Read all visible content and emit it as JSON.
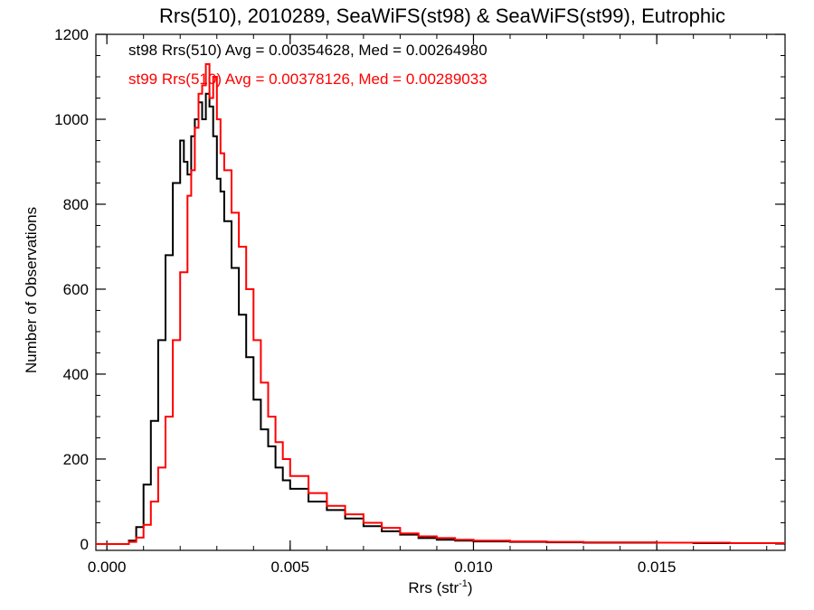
{
  "chart_data": {
    "type": "line",
    "title": "Rrs(510), 2010289, SeaWiFS(st98) & SeaWiFS(st99), Eutrophic",
    "xlabel": "Rrs (str",
    "xlabel_sup": "-1",
    "xlabel_end": ")",
    "ylabel": "Number of Observations",
    "xlim": [
      -0.0003,
      0.0185
    ],
    "ylim": [
      -15,
      1200
    ],
    "xticks": [
      {
        "value": 0.0,
        "label": "0.000"
      },
      {
        "value": 0.005,
        "label": "0.005"
      },
      {
        "value": 0.01,
        "label": "0.010"
      },
      {
        "value": 0.015,
        "label": "0.015"
      }
    ],
    "yticks": [
      {
        "value": 0,
        "label": "0"
      },
      {
        "value": 200,
        "label": "200"
      },
      {
        "value": 400,
        "label": "400"
      },
      {
        "value": 600,
        "label": "600"
      },
      {
        "value": 800,
        "label": "800"
      },
      {
        "value": 1000,
        "label": "1000"
      },
      {
        "value": 1200,
        "label": "1200"
      }
    ],
    "x_minor_step": 0.001,
    "y_minor_step": 50,
    "grid": false,
    "legend_position": "top-left",
    "series": [
      {
        "name": "st98",
        "color": "#000000",
        "legend": "st98 Rrs(510) Avg = 0.00354628, Med = 0.00264980",
        "points": [
          [
            -0.0003,
            0
          ],
          [
            0.0004,
            0
          ],
          [
            0.0006,
            8
          ],
          [
            0.0008,
            40
          ],
          [
            0.001,
            140
          ],
          [
            0.0012,
            290
          ],
          [
            0.0014,
            480
          ],
          [
            0.0016,
            680
          ],
          [
            0.0018,
            850
          ],
          [
            0.002,
            950
          ],
          [
            0.0021,
            900
          ],
          [
            0.0022,
            870
          ],
          [
            0.0023,
            960
          ],
          [
            0.0024,
            1000
          ],
          [
            0.0025,
            1040
          ],
          [
            0.0026,
            1000
          ],
          [
            0.0027,
            1060
          ],
          [
            0.0028,
            1030
          ],
          [
            0.0029,
            960
          ],
          [
            0.003,
            860
          ],
          [
            0.0031,
            830
          ],
          [
            0.0032,
            760
          ],
          [
            0.0034,
            650
          ],
          [
            0.0036,
            540
          ],
          [
            0.0038,
            440
          ],
          [
            0.004,
            340
          ],
          [
            0.0042,
            270
          ],
          [
            0.0044,
            230
          ],
          [
            0.0046,
            180
          ],
          [
            0.0048,
            150
          ],
          [
            0.005,
            130
          ],
          [
            0.0055,
            100
          ],
          [
            0.006,
            80
          ],
          [
            0.0065,
            60
          ],
          [
            0.007,
            42
          ],
          [
            0.0075,
            30
          ],
          [
            0.008,
            22
          ],
          [
            0.0085,
            14
          ],
          [
            0.009,
            10
          ],
          [
            0.0095,
            8
          ],
          [
            0.01,
            6
          ],
          [
            0.011,
            5
          ],
          [
            0.012,
            4
          ],
          [
            0.013,
            3
          ],
          [
            0.014,
            3
          ],
          [
            0.015,
            3
          ],
          [
            0.016,
            2
          ],
          [
            0.017,
            2
          ],
          [
            0.0185,
            2
          ]
        ]
      },
      {
        "name": "st99",
        "color": "#ff0000",
        "legend": "st99 Rrs(510) Avg = 0.00378126, Med = 0.00289033",
        "points": [
          [
            -0.0003,
            0
          ],
          [
            0.0004,
            0
          ],
          [
            0.0006,
            5
          ],
          [
            0.0008,
            15
          ],
          [
            0.001,
            45
          ],
          [
            0.0012,
            100
          ],
          [
            0.0014,
            180
          ],
          [
            0.0016,
            300
          ],
          [
            0.0018,
            480
          ],
          [
            0.002,
            640
          ],
          [
            0.0022,
            820
          ],
          [
            0.0023,
            880
          ],
          [
            0.0024,
            980
          ],
          [
            0.0025,
            1060
          ],
          [
            0.0026,
            1080
          ],
          [
            0.0027,
            1130
          ],
          [
            0.0028,
            1050
          ],
          [
            0.0029,
            1100
          ],
          [
            0.003,
            1000
          ],
          [
            0.0031,
            920
          ],
          [
            0.0032,
            880
          ],
          [
            0.0034,
            780
          ],
          [
            0.0036,
            700
          ],
          [
            0.0038,
            600
          ],
          [
            0.004,
            480
          ],
          [
            0.0042,
            380
          ],
          [
            0.0044,
            300
          ],
          [
            0.0046,
            240
          ],
          [
            0.0048,
            200
          ],
          [
            0.005,
            160
          ],
          [
            0.0055,
            120
          ],
          [
            0.006,
            90
          ],
          [
            0.0065,
            70
          ],
          [
            0.007,
            50
          ],
          [
            0.0075,
            38
          ],
          [
            0.008,
            25
          ],
          [
            0.0085,
            18
          ],
          [
            0.009,
            14
          ],
          [
            0.0095,
            10
          ],
          [
            0.01,
            8
          ],
          [
            0.011,
            6
          ],
          [
            0.012,
            5
          ],
          [
            0.013,
            4
          ],
          [
            0.014,
            4
          ],
          [
            0.015,
            3
          ],
          [
            0.016,
            3
          ],
          [
            0.017,
            2
          ],
          [
            0.0185,
            2
          ]
        ]
      }
    ]
  }
}
